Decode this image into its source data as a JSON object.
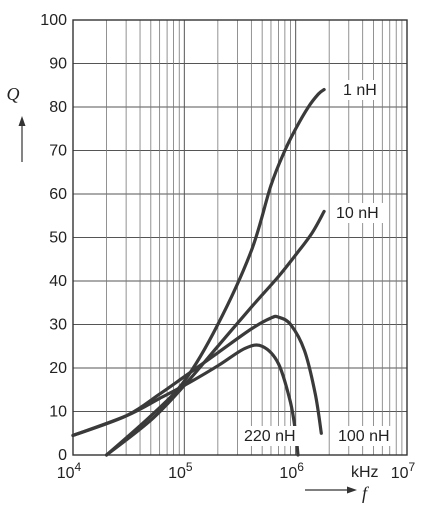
{
  "chart_data": {
    "type": "line",
    "x_scale": "log",
    "xlim": [
      10000,
      10000000
    ],
    "ylim": [
      0,
      100
    ],
    "grid": true,
    "xlabel": "f",
    "x_unit": "kHz",
    "ylabel": "Q",
    "x_ticks": [
      {
        "value": 10000,
        "base": "10",
        "exp": "4"
      },
      {
        "value": 100000,
        "base": "10",
        "exp": "5"
      },
      {
        "value": 1000000,
        "base": "10",
        "exp": "6"
      },
      {
        "value": 10000000,
        "base": "10",
        "exp": "7"
      }
    ],
    "y_ticks": [
      0,
      10,
      20,
      30,
      40,
      50,
      60,
      70,
      80,
      90,
      100
    ],
    "series": [
      {
        "name": "1 nH",
        "x": [
          20000,
          50000,
          100000,
          200000,
          400000,
          600000,
          800000,
          1000000,
          1300000,
          1600000,
          1800000
        ],
        "y": [
          0,
          9,
          17,
          30,
          47,
          62,
          70,
          75,
          80,
          83,
          84
        ]
      },
      {
        "name": "10 nH",
        "x": [
          20000,
          50000,
          100000,
          200000,
          400000,
          700000,
          1000000,
          1400000,
          1800000
        ],
        "y": [
          0,
          8,
          16,
          25,
          34,
          41,
          46,
          51,
          56
        ]
      },
      {
        "name": "100 nH",
        "x": [
          10000,
          30000,
          60000,
          100000,
          200000,
          400000,
          600000,
          700000,
          900000,
          1200000,
          1500000,
          1700000
        ],
        "y": [
          4.5,
          9,
          14,
          18,
          23.5,
          29,
          31.5,
          31.7,
          30,
          24,
          14,
          5
        ]
      },
      {
        "name": "220 nH",
        "x": [
          10000,
          30000,
          60000,
          100000,
          200000,
          350000,
          500000,
          700000,
          900000,
          1000000,
          1050000
        ],
        "y": [
          4.5,
          9,
          13,
          16,
          20.5,
          24.5,
          25,
          21,
          12,
          5,
          0
        ]
      }
    ]
  }
}
